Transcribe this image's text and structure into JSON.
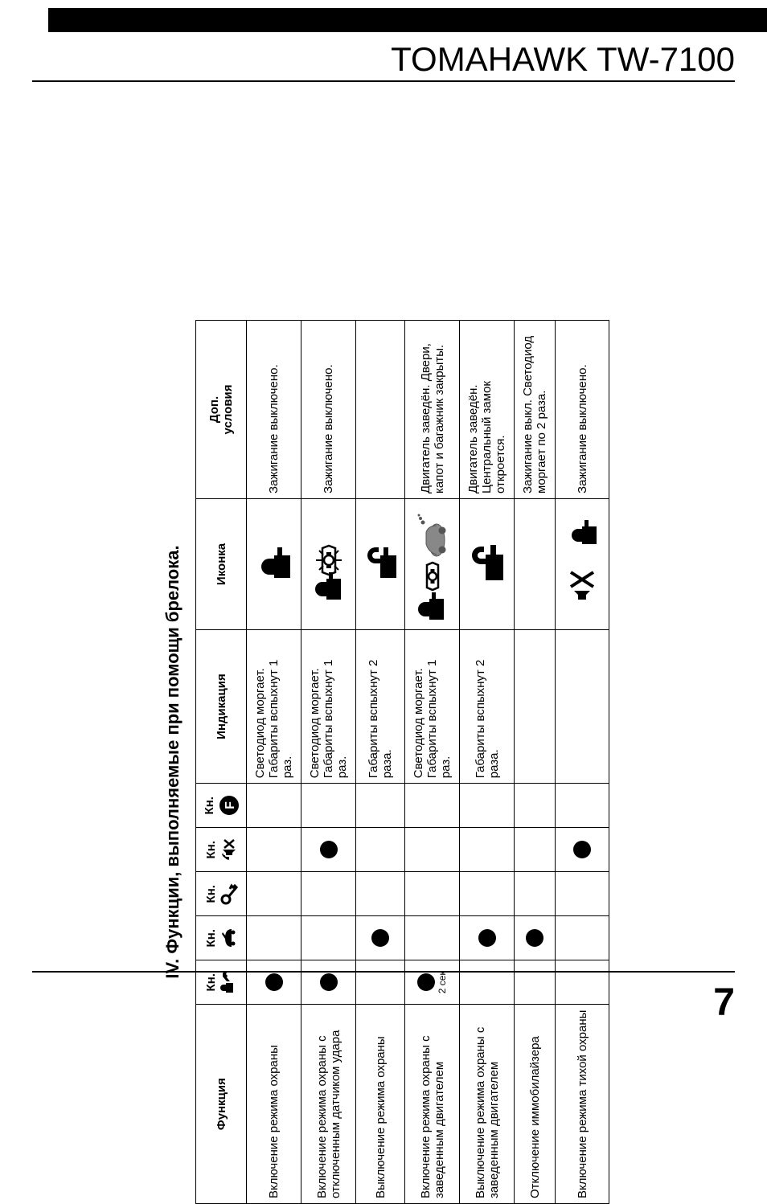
{
  "header": {
    "title": "TOMAHAWK TW-7100"
  },
  "page_number": "7",
  "section": {
    "title": "IV. Функции, выполняемые при помощи брелока."
  },
  "table": {
    "columns": {
      "func": "Функция",
      "btn_prefix": "Кн.",
      "indication": "Индикация",
      "icon": "Иконка",
      "conditions_line1": "Доп.",
      "conditions_line2": "условия"
    },
    "btn_icons": [
      "lock-key",
      "trunk",
      "key",
      "mute",
      "f-circle"
    ],
    "rows": [
      {
        "func": "Включение режима охраны",
        "btns": [
          true,
          false,
          false,
          false,
          false
        ],
        "btn_sub": [
          "",
          "",
          "",
          "",
          ""
        ],
        "indication": "Светодиод моргает. Габариты вспыхнут 1 раз.",
        "icon": "locked",
        "conditions": "Зажигание выключено."
      },
      {
        "func": "Включение режима охраны с отключенным датчиком удара",
        "btns": [
          true,
          false,
          false,
          true,
          false
        ],
        "btn_sub": [
          "",
          "",
          "",
          "",
          ""
        ],
        "indication": "Светодиод моргает. Габариты вспыхнут 1 раз.",
        "icon": "locked-shock",
        "conditions": "Зажигание выключено."
      },
      {
        "func": "Выключение режима охраны",
        "btns": [
          false,
          true,
          false,
          false,
          false
        ],
        "btn_sub": [
          "",
          "",
          "",
          "",
          ""
        ],
        "indication": "Габариты вспыхнут 2 раза.",
        "icon": "unlocked",
        "conditions": ""
      },
      {
        "func": "Включение режима охраны с заведенным двигателем",
        "btns": [
          true,
          false,
          false,
          false,
          false
        ],
        "btn_sub": [
          "2 сек",
          "",
          "",
          "",
          ""
        ],
        "indication": "Светодиод моргает. Габариты вспыхнут 1 раз.",
        "icon": "locked-engine",
        "conditions": "Двигатель заведён. Двери, капот и багажник закрыты."
      },
      {
        "func": "Выключение режима охраны с заведенным двигателем",
        "btns": [
          false,
          true,
          false,
          false,
          false
        ],
        "btn_sub": [
          "",
          "",
          "",
          "",
          ""
        ],
        "indication": "Габариты вспыхнут 2 раза.",
        "icon": "unlocked-dark",
        "conditions": "Двигатель заведён. Центральный замок откроется."
      },
      {
        "func": "Отключение иммобилайзера",
        "btns": [
          false,
          true,
          false,
          false,
          false
        ],
        "btn_sub": [
          "",
          "",
          "",
          "",
          ""
        ],
        "indication": "",
        "icon": "",
        "conditions": "Зажигание выкл. Светодиод моргает по 2 раза."
      },
      {
        "func": "Включение режима тихой охраны",
        "btns": [
          false,
          false,
          false,
          true,
          false
        ],
        "btn_sub": [
          "",
          "",
          "",
          "",
          ""
        ],
        "indication": "",
        "icon": "mute-lock",
        "conditions": "Зажигание выключено."
      }
    ]
  },
  "colors": {
    "black": "#000000",
    "white": "#ffffff",
    "gray": "#888888"
  }
}
